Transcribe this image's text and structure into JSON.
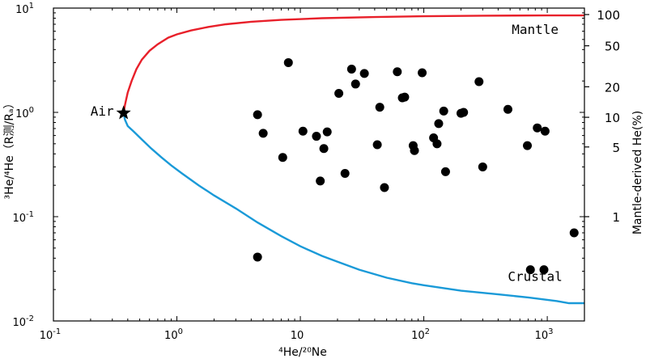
{
  "chart_data": {
    "type": "scatter",
    "x_scale": "log",
    "y_scale": "log",
    "xlim": [
      0.1,
      2000
    ],
    "ylim": [
      0.01,
      10
    ],
    "xlabel": "⁴He/²⁰Ne",
    "ylabel": "³He/⁴He（R测/Rₐ）",
    "y2label": "Mantle-derived He(%)",
    "x_ticks": [
      {
        "value": 0.1,
        "base": "10",
        "exp": "-1"
      },
      {
        "value": 1,
        "base": "10",
        "exp": "0"
      },
      {
        "value": 10,
        "base": "10",
        "exp": ""
      },
      {
        "value": 100,
        "base": "10",
        "exp": "2"
      },
      {
        "value": 1000,
        "base": "10",
        "exp": "3"
      }
    ],
    "y_ticks": [
      {
        "value": 10,
        "base": "10",
        "exp": "1"
      },
      {
        "value": 1,
        "base": "10",
        "exp": "0"
      },
      {
        "value": 0.1,
        "base": "10",
        "exp": "-1"
      },
      {
        "value": 0.01,
        "base": "10",
        "exp": "-2"
      }
    ],
    "y2_ticks": [
      {
        "label": "100",
        "ratio": 8.67
      },
      {
        "label": "50",
        "ratio": 4.35
      },
      {
        "label": "20",
        "ratio": 1.76
      },
      {
        "label": "10",
        "ratio": 0.897
      },
      {
        "label": "5",
        "ratio": 0.466
      },
      {
        "label": "1",
        "ratio": 0.1
      }
    ],
    "annotations": {
      "air": {
        "text": "Air",
        "x": 0.37,
        "y": 0.985
      },
      "mantle": {
        "text": "Mantle",
        "x": 900,
        "y": 6.2
      },
      "crustal": {
        "text": "Crustal",
        "x": 900,
        "y": 0.0265
      }
    },
    "series": [
      {
        "color": "#e8202a",
        "points": [
          [
            0.37,
            0.985
          ],
          [
            0.38,
            1.18
          ],
          [
            0.4,
            1.55
          ],
          [
            0.43,
            2.0
          ],
          [
            0.47,
            2.6
          ],
          [
            0.52,
            3.2
          ],
          [
            0.6,
            3.9
          ],
          [
            0.7,
            4.5
          ],
          [
            0.85,
            5.2
          ],
          [
            1.0,
            5.6
          ],
          [
            1.3,
            6.1
          ],
          [
            1.8,
            6.6
          ],
          [
            2.5,
            7.0
          ],
          [
            4,
            7.4
          ],
          [
            7,
            7.7
          ],
          [
            15,
            8.0
          ],
          [
            40,
            8.2
          ],
          [
            100,
            8.35
          ],
          [
            300,
            8.45
          ],
          [
            1000,
            8.5
          ],
          [
            2000,
            8.5
          ]
        ]
      },
      {
        "color": "#1a9ad8",
        "points": [
          [
            0.37,
            0.985
          ],
          [
            0.38,
            0.85
          ],
          [
            0.4,
            0.74
          ],
          [
            0.45,
            0.65
          ],
          [
            0.52,
            0.55
          ],
          [
            0.62,
            0.45
          ],
          [
            0.75,
            0.37
          ],
          [
            0.9,
            0.31
          ],
          [
            1.1,
            0.26
          ],
          [
            1.5,
            0.2
          ],
          [
            2,
            0.16
          ],
          [
            3,
            0.12
          ],
          [
            4.5,
            0.088
          ],
          [
            7,
            0.065
          ],
          [
            10,
            0.052
          ],
          [
            15,
            0.042
          ],
          [
            20,
            0.037
          ],
          [
            30,
            0.031
          ],
          [
            50,
            0.026
          ],
          [
            80,
            0.023
          ],
          [
            100,
            0.022
          ],
          [
            200,
            0.0195
          ],
          [
            400,
            0.018
          ],
          [
            700,
            0.0168
          ],
          [
            1200,
            0.0155
          ],
          [
            1500,
            0.0148
          ],
          [
            2000,
            0.0148
          ]
        ]
      }
    ],
    "points": [
      [
        4.5,
        0.95
      ],
      [
        5.0,
        0.63
      ],
      [
        7.2,
        0.37
      ],
      [
        8.0,
        3.0
      ],
      [
        10.5,
        0.66
      ],
      [
        13.5,
        0.59
      ],
      [
        14.5,
        0.22
      ],
      [
        15.5,
        0.45
      ],
      [
        16.5,
        0.65
      ],
      [
        20.5,
        1.52
      ],
      [
        23.0,
        0.26
      ],
      [
        26.0,
        2.6
      ],
      [
        28.0,
        1.87
      ],
      [
        33.0,
        2.36
      ],
      [
        42.0,
        0.49
      ],
      [
        44.0,
        1.12
      ],
      [
        48.0,
        0.19
      ],
      [
        61.0,
        2.45
      ],
      [
        67.0,
        1.38
      ],
      [
        70.0,
        1.4
      ],
      [
        82.0,
        0.48
      ],
      [
        84.0,
        0.43
      ],
      [
        97.0,
        2.4
      ],
      [
        120.0,
        0.57
      ],
      [
        128.0,
        0.5
      ],
      [
        132.0,
        0.78
      ],
      [
        145.0,
        1.03
      ],
      [
        150.0,
        0.27
      ],
      [
        200.0,
        0.98
      ],
      [
        210.0,
        1.0
      ],
      [
        280.0,
        1.97
      ],
      [
        300.0,
        0.3
      ],
      [
        480.0,
        1.07
      ],
      [
        690.0,
        0.48
      ],
      [
        830.0,
        0.71
      ],
      [
        960.0,
        0.66
      ],
      [
        4.5,
        0.041
      ],
      [
        730.0,
        0.031
      ],
      [
        940.0,
        0.031
      ],
      [
        1650.0,
        0.07
      ]
    ]
  }
}
